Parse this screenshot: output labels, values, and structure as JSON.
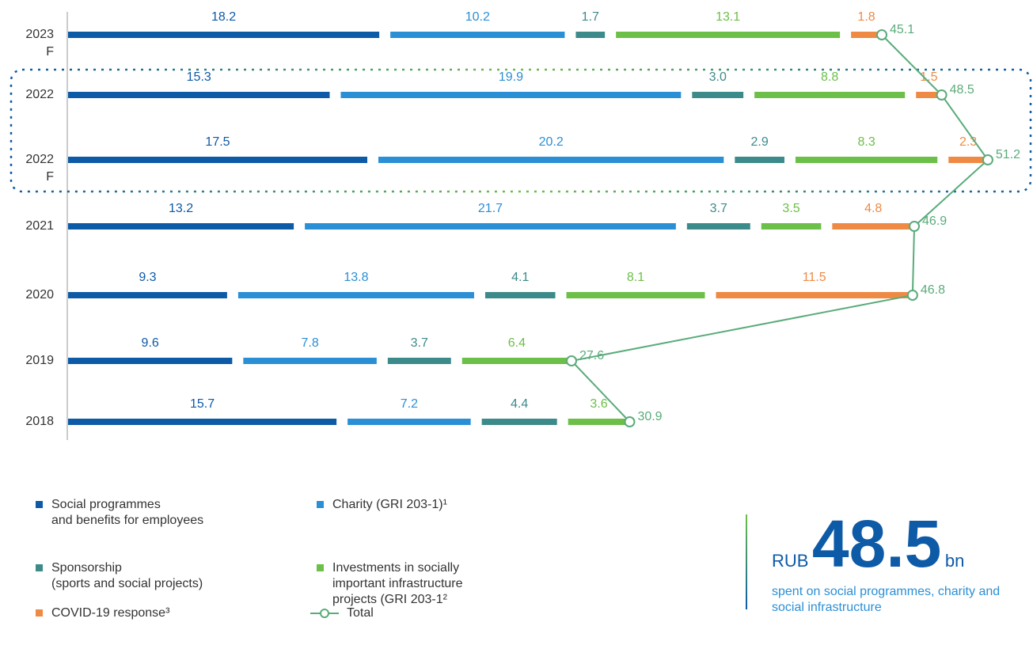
{
  "chart_data": {
    "type": "bar",
    "orientation": "horizontal",
    "categories": [
      "2023 F",
      "2022",
      "2022 F",
      "2021",
      "2020",
      "2019",
      "2018"
    ],
    "series": [
      {
        "name": "Social programmes\nand benefits for employees",
        "color": "#0d5aa7",
        "values": [
          18.2,
          15.3,
          17.5,
          13.2,
          9.3,
          9.6,
          15.7
        ]
      },
      {
        "name": "Charity (GRI 203-1)¹",
        "color": "#2b8fd6",
        "values": [
          10.2,
          19.9,
          20.2,
          21.7,
          13.8,
          7.8,
          7.2
        ]
      },
      {
        "name": "Sponsorship\n(sports and social projects)",
        "color": "#3d8a8a",
        "values": [
          1.7,
          3.0,
          2.9,
          3.7,
          4.1,
          3.7,
          4.4
        ],
        "value_labels": [
          "1.7",
          "3.0",
          "2.9",
          "3.7",
          "4.1",
          "3.7",
          "4.4"
        ]
      },
      {
        "name": "Investments in socially\nimportant infrastructure\nprojects (GRI 203-1²",
        "color": "#6cbf48",
        "values": [
          13.1,
          8.8,
          8.3,
          3.5,
          8.1,
          6.4,
          3.6
        ]
      },
      {
        "name": "COVID-19 response³",
        "color": "#ef8a44",
        "values": [
          1.8,
          1.5,
          2.3,
          4.8,
          11.5,
          null,
          null
        ]
      },
      {
        "name": "Total",
        "color": "#5aab7a",
        "type": "line",
        "values": [
          45.1,
          48.5,
          51.2,
          46.9,
          46.8,
          27.6,
          30.9
        ]
      }
    ]
  },
  "callout": {
    "prefix": "RUB",
    "value": "48.5",
    "suffix": "bn",
    "text": "spent on social programmes, charity and social infrastructure"
  }
}
